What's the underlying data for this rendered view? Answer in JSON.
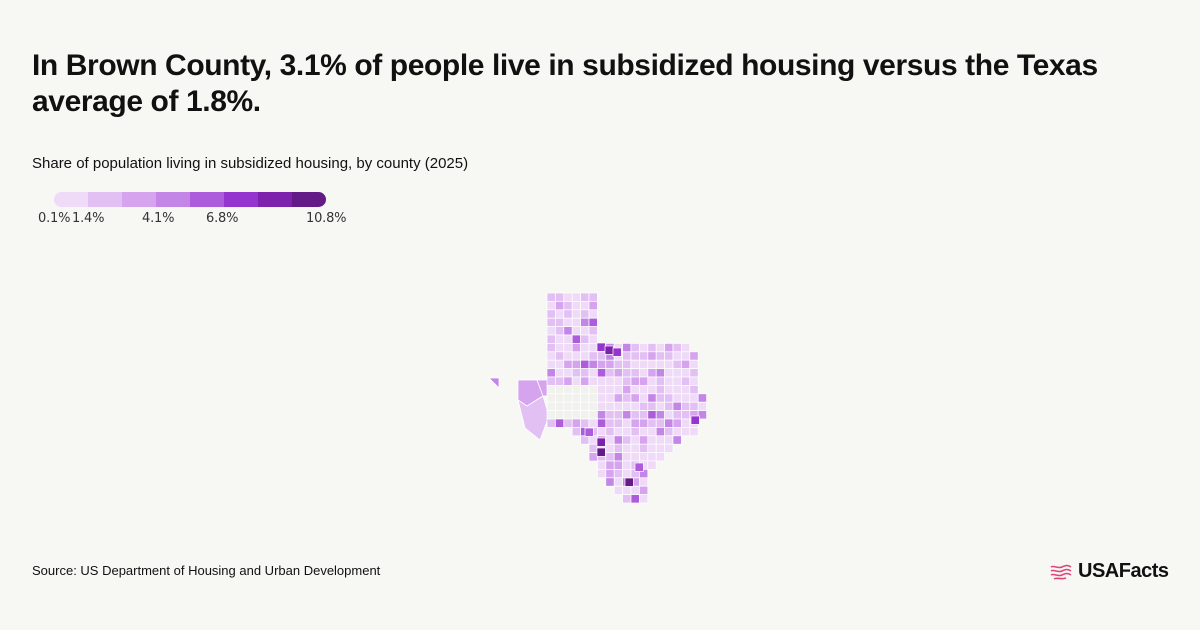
{
  "headline": "In Brown County, 3.1% of people live in subsidized housing versus the Texas average of 1.8%.",
  "subtitle": "Share of population living in subsidized housing, by county (2025)",
  "legend": {
    "colors": [
      "#efdaf8",
      "#e3c0f4",
      "#d6a4ee",
      "#c386e6",
      "#ad5ddc",
      "#9634cf",
      "#7d22ad",
      "#641a87"
    ],
    "labels": [
      "0.1%",
      "1.4%",
      "4.1%",
      "6.8%",
      "10.8%"
    ]
  },
  "source": "Source: US Department of Housing and Urban Development",
  "brand": "USAFacts",
  "colors": {
    "background": "#f7f7f3",
    "no_data": "#f1f1ee",
    "brand_accent": "#e0447b"
  }
}
